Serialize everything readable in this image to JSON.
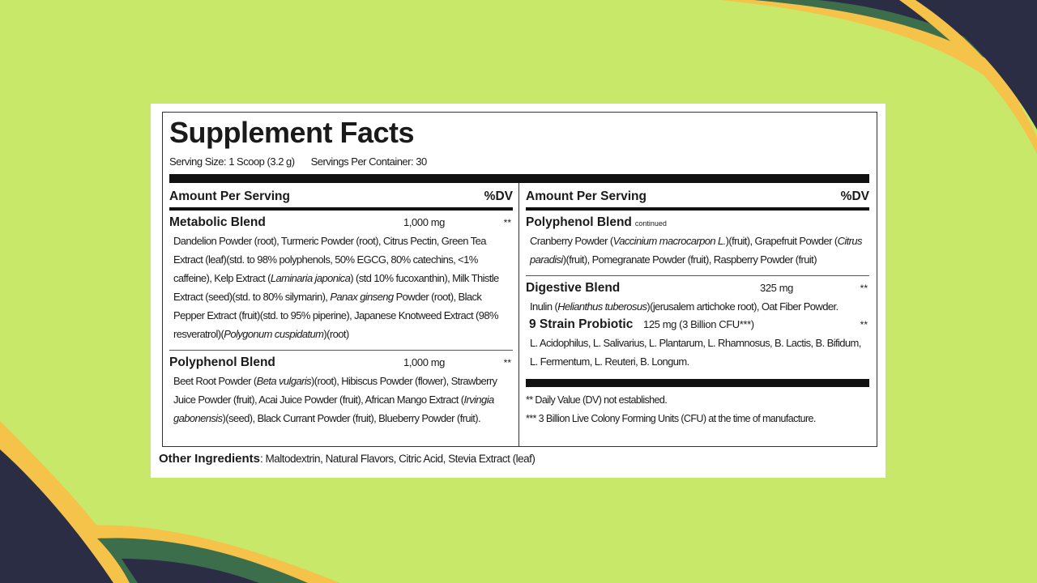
{
  "label": {
    "title": "Supplement Facts",
    "serving_size": "Serving Size: 1 Scoop (3.2 g)",
    "servings_per_container": "Servings Per Container: 30",
    "columns": [
      {
        "header": {
          "amount": "Amount Per Serving",
          "dv": "%DV"
        },
        "blends": [
          {
            "name": "Metabolic Blend",
            "amount": "1,000 mg",
            "dv": "**",
            "ingredients": [
              {
                "text": "Dandelion Powder (root), Turmeric Powder (root), Citrus Pectin, Green Tea Extract (leaf)(std. to 98% polyphenols, 50% EGCG, 80% catechins, <1% caffeine), Kelp Extract ("
              },
              {
                "text": "Laminaria japonica",
                "style": "italic"
              },
              {
                "text": ") (std 10% fucoxanthin), Milk Thistle Extract (seed)(std. to 80% silymarin), "
              },
              {
                "text": "Panax ginseng",
                "style": "italic"
              },
              {
                "text": " Powder (root), Black Pepper Extract (fruit)(std. to 95% piperine), Japanese Knotweed Extract (98% resveratrol)("
              },
              {
                "text": "Polygonum cuspidatum",
                "style": "italic"
              },
              {
                "text": ")(root)"
              }
            ]
          },
          {
            "name": "Polyphenol Blend",
            "amount": "1,000 mg",
            "dv": "**",
            "ingredients": [
              {
                "text": "Beet Root Powder ("
              },
              {
                "text": "Beta vulgaris",
                "style": "italic"
              },
              {
                "text": ")(root), Hibiscus Powder (flower), Strawberry Juice Powder (fruit), Acai Juice Powder (fruit), African Mango Extract ("
              },
              {
                "text": "Irvingia gabonensis",
                "style": "italic"
              },
              {
                "text": ")(seed), Black Currant Powder (fruit), Blueberry Powder (fruit)."
              }
            ]
          }
        ]
      },
      {
        "header": {
          "amount": "Amount Per Serving",
          "dv": "%DV"
        },
        "blends": [
          {
            "name": "Polyphenol Blend",
            "note": "continued",
            "ingredients": [
              {
                "text": "Cranberry Powder ("
              },
              {
                "text": "Vaccinium macrocarpon L.",
                "style": "italic"
              },
              {
                "text": ")(fruit), Grapefruit Powder ("
              },
              {
                "text": "Citrus paradisi",
                "style": "italic"
              },
              {
                "text": ")(fruit), Pomegranate Powder (fruit), Raspberry Powder (fruit)"
              }
            ]
          },
          {
            "name": "Digestive Blend",
            "amount": "325 mg",
            "dv": "**",
            "ingredients": [
              {
                "text": "Inulin ("
              },
              {
                "text": "Helianthus tuberosus",
                "style": "italic"
              },
              {
                "text": ")(jerusalem artichoke root), Oat Fiber Powder."
              }
            ],
            "sub": {
              "name": "9 Strain Probiotic",
              "amount": "125 mg (3 Billion CFU***)",
              "dv": "**",
              "ingredients": [
                {
                  "text": "L. Acidophilus, L. Salivarius, L. Plantarum, L. Rhamnosus, B. Lactis, B. Bifidum, L. Fermentum, L. Reuteri, B. Longum."
                }
              ]
            }
          }
        ],
        "footnotes": [
          "** Daily Value (DV) not established.",
          "*** 3 Billion Live Colony Forming Units (CFU) at the time of manufacture."
        ]
      }
    ],
    "other_ingredients": {
      "label": "Other Ingredients",
      "text": ": Maltodextrin, Natural Flavors, Citric Acid, Stevia Extract (leaf)"
    }
  }
}
